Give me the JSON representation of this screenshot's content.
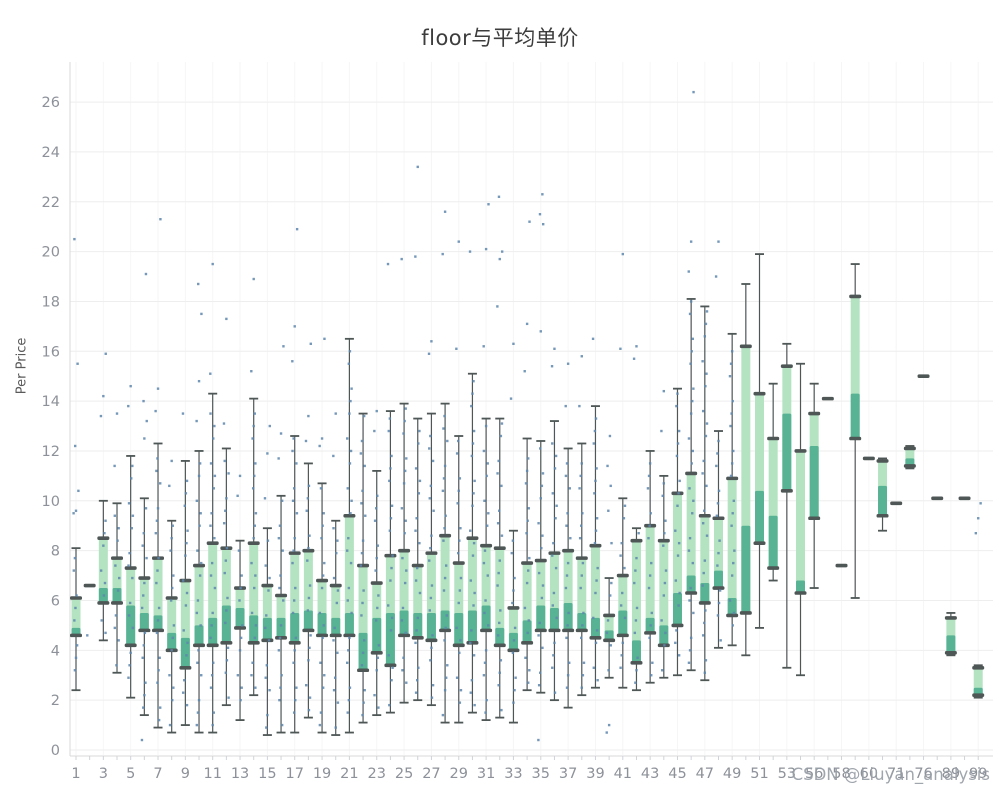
{
  "title": "floor与平均单价",
  "watermark": "CSDN @Liuyan_analysis",
  "chart_data": {
    "type": "box",
    "title": "floor与平均单价",
    "xlabel": "",
    "ylabel": "Per Price",
    "ylim": [
      0,
      27.5
    ],
    "yticks": [
      0,
      2,
      4,
      6,
      8,
      10,
      12,
      14,
      16,
      18,
      20,
      22,
      24,
      26
    ],
    "grid": "light horizontal lines at each y tick; very faint vertical lines at labeled categories; labels every 2nd category",
    "legend_position": "none",
    "colors": {
      "box_light": "#b4e3c2",
      "box_dark": "#57b393",
      "whisker": "#4e5656",
      "cap": "#4e5656",
      "dot": "#5d86ad",
      "grid_h": "#eeeeee",
      "grid_v": "#f6f6f6",
      "axis": "#d9d9d9",
      "tick": "#cfd3d7",
      "tick_label": "#8d9199",
      "title_color": "#3d3d3d"
    },
    "categories": [
      "1",
      "2",
      "3",
      "4",
      "5",
      "6",
      "7",
      "8",
      "9",
      "10",
      "11",
      "12",
      "13",
      "14",
      "15",
      "16",
      "17",
      "18",
      "19",
      "20",
      "21",
      "22",
      "23",
      "24",
      "25",
      "26",
      "27",
      "28",
      "29",
      "30",
      "31",
      "32",
      "33",
      "34",
      "35",
      "36",
      "37",
      "38",
      "39",
      "40",
      "41",
      "42",
      "43",
      "44",
      "45",
      "46",
      "47",
      "48",
      "49",
      "50",
      "51",
      "52",
      "53",
      "55",
      "56",
      "57",
      "58",
      "59",
      "60",
      "62",
      "71",
      "72",
      "76",
      "80",
      "89",
      "92",
      "99"
    ],
    "boxes": [
      {
        "x": "1",
        "min": 2.4,
        "q1": 4.6,
        "med": 4.9,
        "q3": 6.1,
        "max": 8.1,
        "outliers": [
          9.5,
          9.6,
          10.4,
          12.2,
          15.5,
          20.5
        ]
      },
      {
        "x": "2",
        "single": 6.6,
        "outliers": [
          4.6
        ]
      },
      {
        "x": "3",
        "min": 4.4,
        "q1": 5.9,
        "med": 6.5,
        "q3": 8.5,
        "max": 10.0,
        "outliers": [
          13.4,
          14.2,
          15.9
        ]
      },
      {
        "x": "4",
        "min": 3.1,
        "q1": 5.9,
        "med": 6.5,
        "q3": 7.7,
        "max": 9.9,
        "outliers": [
          11.4,
          13.5
        ]
      },
      {
        "x": "5",
        "min": 2.1,
        "q1": 4.2,
        "med": 5.8,
        "q3": 7.3,
        "max": 11.8,
        "outliers": [
          13.8,
          14.6
        ]
      },
      {
        "x": "6",
        "min": 1.4,
        "q1": 4.8,
        "med": 5.5,
        "q3": 6.9,
        "max": 10.1,
        "outliers": [
          0.4,
          12.5,
          13.2,
          14.0,
          19.1
        ]
      },
      {
        "x": "7",
        "min": 0.9,
        "q1": 4.8,
        "med": 5.4,
        "q3": 7.7,
        "max": 12.3,
        "outliers": [
          13.6,
          14.5,
          21.3
        ]
      },
      {
        "x": "8",
        "min": 0.7,
        "q1": 4.0,
        "med": 4.7,
        "q3": 6.1,
        "max": 9.2,
        "outliers": [
          10.6,
          11.6
        ]
      },
      {
        "x": "9",
        "min": 1.0,
        "q1": 3.3,
        "med": 4.5,
        "q3": 6.8,
        "max": 11.6,
        "outliers": [
          13.5
        ]
      },
      {
        "x": "10",
        "min": 0.7,
        "q1": 4.2,
        "med": 5.0,
        "q3": 7.4,
        "max": 12.0,
        "outliers": [
          13.2,
          14.8,
          17.5,
          18.7
        ]
      },
      {
        "x": "11",
        "min": 0.7,
        "q1": 4.2,
        "med": 5.3,
        "q3": 8.3,
        "max": 14.3,
        "outliers": [
          15.1,
          19.5
        ]
      },
      {
        "x": "12",
        "min": 1.8,
        "q1": 4.3,
        "med": 5.8,
        "q3": 8.1,
        "max": 12.1,
        "outliers": [
          13.1,
          17.3
        ]
      },
      {
        "x": "13",
        "min": 1.2,
        "q1": 4.9,
        "med": 5.7,
        "q3": 6.5,
        "max": 8.4,
        "outliers": [
          10.2,
          11.0
        ]
      },
      {
        "x": "14",
        "min": 2.2,
        "q1": 4.3,
        "med": 5.4,
        "q3": 8.3,
        "max": 14.1,
        "outliers": [
          15.2,
          18.9
        ]
      },
      {
        "x": "15",
        "min": 0.6,
        "q1": 4.4,
        "med": 5.3,
        "q3": 6.6,
        "max": 8.9,
        "outliers": [
          10.1,
          11.9,
          13.0
        ]
      },
      {
        "x": "16",
        "min": 0.7,
        "q1": 4.5,
        "med": 5.3,
        "q3": 6.2,
        "max": 10.2,
        "outliers": [
          11.7,
          12.7,
          16.2
        ]
      },
      {
        "x": "17",
        "min": 0.7,
        "q1": 4.3,
        "med": 5.5,
        "q3": 7.9,
        "max": 12.6,
        "outliers": [
          15.6,
          17.0,
          20.9
        ]
      },
      {
        "x": "18",
        "min": 1.3,
        "q1": 4.8,
        "med": 5.6,
        "q3": 8.0,
        "max": 11.5,
        "outliers": [
          12.4,
          13.4,
          16.3
        ]
      },
      {
        "x": "19",
        "min": 0.7,
        "q1": 4.6,
        "med": 5.5,
        "q3": 6.8,
        "max": 10.7,
        "outliers": [
          12.2,
          12.5,
          16.5
        ]
      },
      {
        "x": "20",
        "min": 0.6,
        "q1": 4.6,
        "med": 5.3,
        "q3": 6.6,
        "max": 9.2,
        "outliers": [
          11.8,
          13.5
        ]
      },
      {
        "x": "21",
        "min": 0.7,
        "q1": 4.6,
        "med": 5.5,
        "q3": 9.4,
        "max": 16.5,
        "outliers": []
      },
      {
        "x": "22",
        "min": 1.1,
        "q1": 3.2,
        "med": 4.7,
        "q3": 7.4,
        "max": 13.5,
        "outliers": []
      },
      {
        "x": "23",
        "min": 1.4,
        "q1": 3.9,
        "med": 5.3,
        "q3": 6.7,
        "max": 11.2,
        "outliers": [
          12.8,
          13.6
        ]
      },
      {
        "x": "24",
        "min": 1.5,
        "q1": 3.4,
        "med": 5.5,
        "q3": 7.8,
        "max": 13.6,
        "outliers": [
          19.5
        ]
      },
      {
        "x": "25",
        "min": 1.9,
        "q1": 4.6,
        "med": 5.6,
        "q3": 8.0,
        "max": 13.9,
        "outliers": [
          19.7
        ]
      },
      {
        "x": "26",
        "min": 2.0,
        "q1": 4.5,
        "med": 5.5,
        "q3": 7.4,
        "max": 13.3,
        "outliers": [
          19.8,
          23.4
        ]
      },
      {
        "x": "27",
        "min": 1.8,
        "q1": 4.4,
        "med": 5.5,
        "q3": 7.9,
        "max": 13.5,
        "outliers": [
          15.9,
          16.4
        ]
      },
      {
        "x": "28",
        "min": 1.1,
        "q1": 4.8,
        "med": 5.6,
        "q3": 8.6,
        "max": 13.9,
        "outliers": [
          19.9,
          21.6
        ]
      },
      {
        "x": "29",
        "min": 1.1,
        "q1": 4.2,
        "med": 5.5,
        "q3": 7.5,
        "max": 12.6,
        "outliers": [
          16.1,
          20.4
        ]
      },
      {
        "x": "30",
        "min": 1.5,
        "q1": 4.3,
        "med": 5.6,
        "q3": 8.5,
        "max": 15.1,
        "outliers": [
          20.0
        ]
      },
      {
        "x": "31",
        "min": 1.2,
        "q1": 4.8,
        "med": 5.8,
        "q3": 8.2,
        "max": 13.3,
        "outliers": [
          16.2,
          20.1,
          21.9
        ]
      },
      {
        "x": "32",
        "min": 1.3,
        "q1": 4.2,
        "med": 4.9,
        "q3": 8.1,
        "max": 13.3,
        "outliers": [
          17.8,
          19.7,
          20.0,
          22.2
        ]
      },
      {
        "x": "33",
        "min": 1.1,
        "q1": 4.0,
        "med": 4.7,
        "q3": 5.7,
        "max": 8.8,
        "outliers": [
          14.1,
          16.3
        ]
      },
      {
        "x": "34",
        "min": 2.4,
        "q1": 4.3,
        "med": 5.2,
        "q3": 7.5,
        "max": 12.5,
        "outliers": [
          15.2,
          17.1,
          21.2
        ]
      },
      {
        "x": "35",
        "min": 2.3,
        "q1": 4.8,
        "med": 5.8,
        "q3": 7.6,
        "max": 12.4,
        "outliers": [
          0.4,
          16.8,
          21.1,
          21.5,
          22.3
        ]
      },
      {
        "x": "36",
        "min": 2.0,
        "q1": 4.8,
        "med": 5.7,
        "q3": 7.9,
        "max": 13.2,
        "outliers": [
          15.4,
          16.1
        ]
      },
      {
        "x": "37",
        "min": 1.7,
        "q1": 4.8,
        "med": 5.9,
        "q3": 8.0,
        "max": 12.1,
        "outliers": [
          13.8,
          15.5
        ]
      },
      {
        "x": "38",
        "min": 2.2,
        "q1": 4.8,
        "med": 5.5,
        "q3": 7.7,
        "max": 12.3,
        "outliers": [
          13.8,
          15.8
        ]
      },
      {
        "x": "39",
        "min": 2.5,
        "q1": 4.5,
        "med": 5.3,
        "q3": 8.2,
        "max": 13.8,
        "outliers": [
          16.5
        ]
      },
      {
        "x": "40",
        "min": 2.9,
        "q1": 4.4,
        "med": 4.8,
        "q3": 5.4,
        "max": 6.9,
        "outliers": [
          0.7,
          1.0,
          8.3,
          9.6,
          10.6,
          11.4,
          12.6
        ]
      },
      {
        "x": "41",
        "min": 2.5,
        "q1": 4.6,
        "med": 5.6,
        "q3": 7.0,
        "max": 10.1,
        "outliers": [
          16.1,
          19.9
        ]
      },
      {
        "x": "42",
        "min": 2.4,
        "q1": 3.5,
        "med": 4.4,
        "q3": 8.4,
        "max": 8.9,
        "outliers": [
          15.7,
          16.2
        ]
      },
      {
        "x": "43",
        "min": 2.7,
        "q1": 4.7,
        "med": 5.3,
        "q3": 9.0,
        "max": 12.0,
        "outliers": []
      },
      {
        "x": "44",
        "min": 2.9,
        "q1": 4.2,
        "med": 5.0,
        "q3": 8.4,
        "max": 11.0,
        "outliers": [
          12.8,
          14.4
        ]
      },
      {
        "x": "45",
        "min": 3.0,
        "q1": 5.0,
        "med": 6.3,
        "q3": 10.3,
        "max": 14.5,
        "outliers": []
      },
      {
        "x": "46",
        "min": 3.2,
        "q1": 6.3,
        "med": 7.0,
        "q3": 11.1,
        "max": 18.1,
        "outliers": [
          19.2,
          20.4,
          26.4
        ]
      },
      {
        "x": "47",
        "min": 2.8,
        "q1": 5.9,
        "med": 6.7,
        "q3": 9.4,
        "max": 17.8,
        "outliers": []
      },
      {
        "x": "48",
        "min": 4.1,
        "q1": 6.5,
        "med": 7.2,
        "q3": 9.3,
        "max": 12.8,
        "outliers": [
          19.0,
          20.4
        ]
      },
      {
        "x": "49",
        "min": 4.2,
        "q1": 5.4,
        "med": 6.1,
        "q3": 10.9,
        "max": 16.7,
        "outliers": []
      },
      {
        "x": "50",
        "min": 3.8,
        "q1": 5.5,
        "med": 9.0,
        "q3": 16.2,
        "max": 18.7,
        "outliers": []
      },
      {
        "x": "51",
        "min": 4.9,
        "q1": 8.3,
        "med": 10.4,
        "q3": 14.3,
        "max": 19.9,
        "outliers": []
      },
      {
        "x": "52",
        "min": 6.8,
        "q1": 7.3,
        "med": 9.4,
        "q3": 12.5,
        "max": 14.7,
        "outliers": []
      },
      {
        "x": "53",
        "min": 3.3,
        "q1": 10.4,
        "med": 13.5,
        "q3": 15.4,
        "max": 16.3,
        "outliers": []
      },
      {
        "x": "55",
        "min": 3.0,
        "q1": 6.3,
        "med": 6.8,
        "q3": 12.0,
        "max": 15.5,
        "outliers": []
      },
      {
        "x": "56",
        "min": 6.5,
        "q1": 9.3,
        "med": 12.2,
        "q3": 13.5,
        "max": 14.7,
        "outliers": []
      },
      {
        "x": "57",
        "single": 14.1,
        "outliers": []
      },
      {
        "x": "58",
        "single": 7.4,
        "outliers": []
      },
      {
        "x": "59",
        "min": 6.1,
        "q1": 12.5,
        "med": 14.3,
        "q3": 18.2,
        "max": 19.5,
        "outliers": []
      },
      {
        "x": "60",
        "single": 11.7,
        "outliers": []
      },
      {
        "x": "62",
        "min": 8.8,
        "q1": 9.4,
        "med": 10.6,
        "q3": 11.6,
        "max": 11.7,
        "outliers": []
      },
      {
        "x": "71",
        "single": 9.9,
        "outliers": []
      },
      {
        "x": "72",
        "min": 11.3,
        "q1": 11.4,
        "med": 11.7,
        "q3": 12.1,
        "max": 12.2,
        "outliers": []
      },
      {
        "x": "76",
        "single": 15.0,
        "outliers": []
      },
      {
        "x": "80",
        "single": 10.1,
        "outliers": []
      },
      {
        "x": "89",
        "min": 3.8,
        "q1": 3.9,
        "med": 4.6,
        "q3": 5.3,
        "max": 5.5,
        "outliers": []
      },
      {
        "x": "92",
        "single": 10.1,
        "outliers": []
      },
      {
        "x": "99",
        "min": 2.1,
        "q1": 2.2,
        "med": 2.5,
        "q3": 3.3,
        "max": 3.4,
        "outliers": [
          8.7,
          9.3,
          9.9
        ]
      }
    ]
  }
}
